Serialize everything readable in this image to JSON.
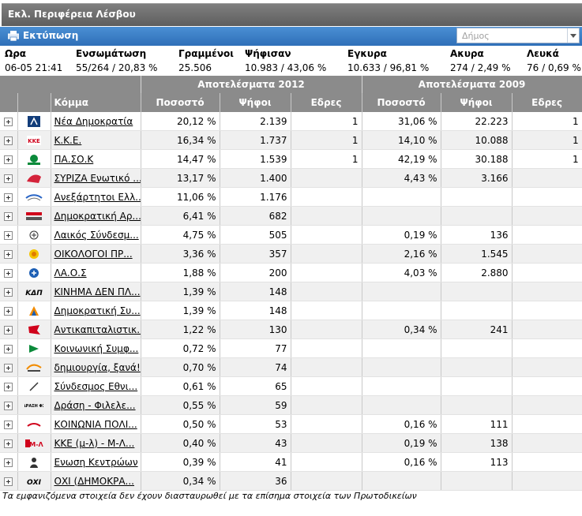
{
  "window": {
    "title": "Εκλ. Περιφέρεια Λέσβου"
  },
  "toolbar": {
    "print_label": "Εκτύπωση",
    "municipality_placeholder": "Δήμος"
  },
  "stats": {
    "headers": {
      "time": "Ωρα",
      "integration": "Ενσωμάτωση",
      "registered": "Γραμμένοι",
      "voted": "Ψήφισαν",
      "valid": "Εγκυρα",
      "invalid": "Ακυρα",
      "blank": "Λευκά"
    },
    "values": {
      "time": "06-05 21:41",
      "integration": "55/264 / 20,83 %",
      "registered": "25.506",
      "voted": "10.983 / 43,06 %",
      "valid": "10.633 / 96,81 %",
      "invalid": "274 / 2,49 %",
      "blank": "76 / 0,69 %"
    }
  },
  "table": {
    "group_2012": "Αποτελέσματα 2012",
    "group_2009": "Αποτελέσματα 2009",
    "col_party": "Κόμμα",
    "col_pct": "Ποσοστό",
    "col_votes": "Ψήφοι",
    "col_seats": "Εδρες",
    "rows": [
      {
        "party": "Νέα Δημοκρατία",
        "pct12": "20,12 %",
        "votes12": "2.139",
        "seats12": "1",
        "pct09": "31,06 %",
        "votes09": "22.223",
        "seats09": "1",
        "logo": "nd-logo-icon"
      },
      {
        "party": "Κ.Κ.Ε.",
        "pct12": "16,34 %",
        "votes12": "1.737",
        "seats12": "1",
        "pct09": "14,10 %",
        "votes09": "10.088",
        "seats09": "1",
        "logo": "kke-logo-icon"
      },
      {
        "party": "ΠΑ.ΣΟ.Κ",
        "pct12": "14,47 %",
        "votes12": "1.539",
        "seats12": "1",
        "pct09": "42,19 %",
        "votes09": "30.188",
        "seats09": "1",
        "logo": "pasok-logo-icon"
      },
      {
        "party": "ΣΥΡΙΖΑ Ενωτικό ...",
        "pct12": "13,17 %",
        "votes12": "1.400",
        "seats12": "",
        "pct09": "4,43 %",
        "votes09": "3.166",
        "seats09": "",
        "logo": "syriza-logo-icon"
      },
      {
        "party": "Ανεξάρτητοι Ελλ...",
        "pct12": "11,06 %",
        "votes12": "1.176",
        "seats12": "",
        "pct09": "",
        "votes09": "",
        "seats09": "",
        "logo": "anel-logo-icon"
      },
      {
        "party": "Δημοκρατική Αρ...",
        "pct12": "6,41 %",
        "votes12": "682",
        "seats12": "",
        "pct09": "",
        "votes09": "",
        "seats09": "",
        "logo": "dimar-logo-icon"
      },
      {
        "party": "Λαικός Σύνδεσμ...",
        "pct12": "4,75 %",
        "votes12": "505",
        "seats12": "",
        "pct09": "0,19 %",
        "votes09": "136",
        "seats09": "",
        "logo": "xa-logo-icon"
      },
      {
        "party": "ΟΙΚΟΛΟΓΟΙ ΠΡ...",
        "pct12": "3,36 %",
        "votes12": "357",
        "seats12": "",
        "pct09": "2,16 %",
        "votes09": "1.545",
        "seats09": "",
        "logo": "greens-logo-icon"
      },
      {
        "party": "ΛΑ.Ο.Σ",
        "pct12": "1,88 %",
        "votes12": "200",
        "seats12": "",
        "pct09": "4,03 %",
        "votes09": "2.880",
        "seats09": "",
        "logo": "laos-logo-icon"
      },
      {
        "party": "ΚΙΝΗΜΑ ΔΕΝ ΠΛ...",
        "pct12": "1,39 %",
        "votes12": "148",
        "seats12": "",
        "pct09": "",
        "votes09": "",
        "seats09": "",
        "logo": "kdp-logo-icon",
        "logo_text": "ΚΔΠ"
      },
      {
        "party": "Δημοκρατική Συ...",
        "pct12": "1,39 %",
        "votes12": "148",
        "seats12": "",
        "pct09": "",
        "votes09": "",
        "seats09": "",
        "logo": "dsy-logo-icon"
      },
      {
        "party": "Αντικαπιταλιστικ...",
        "pct12": "1,22 %",
        "votes12": "130",
        "seats12": "",
        "pct09": "0,34 %",
        "votes09": "241",
        "seats09": "",
        "logo": "antarsya-logo-icon"
      },
      {
        "party": "Κοινωνική Συμφ...",
        "pct12": "0,72 %",
        "votes12": "77",
        "seats12": "",
        "pct09": "",
        "votes09": "",
        "seats09": "",
        "logo": "ks-logo-icon"
      },
      {
        "party": "δημιουργία, ξανά!",
        "pct12": "0,70 %",
        "votes12": "74",
        "seats12": "",
        "pct09": "",
        "votes09": "",
        "seats09": "",
        "logo": "dx-logo-icon"
      },
      {
        "party": "Σύνδεσμος Εθνι...",
        "pct12": "0,61 %",
        "votes12": "65",
        "seats12": "",
        "pct09": "",
        "votes09": "",
        "seats09": "",
        "logo": "se-logo-icon"
      },
      {
        "party": "Δράση - Φιλελε...",
        "pct12": "0,55 %",
        "votes12": "59",
        "seats12": "",
        "pct09": "",
        "votes09": "",
        "seats09": "",
        "logo": "drasi-logo-icon",
        "logo_text": "ΔΡΑΣΗ ΦΣ"
      },
      {
        "party": "ΚΟΙΝΩΝΙΑ ΠΟΛΙ...",
        "pct12": "0,50 %",
        "votes12": "53",
        "seats12": "",
        "pct09": "0,16 %",
        "votes09": "111",
        "seats09": "",
        "logo": "koinonia-logo-icon"
      },
      {
        "party": "ΚΚΕ (μ-λ) - Μ-Λ...",
        "pct12": "0,40 %",
        "votes12": "43",
        "seats12": "",
        "pct09": "0,19 %",
        "votes09": "138",
        "seats09": "",
        "logo": "kkeml-logo-icon",
        "logo_text": "Μ-Λ"
      },
      {
        "party": "Ενωση Κεντρώων",
        "pct12": "0,39 %",
        "votes12": "41",
        "seats12": "",
        "pct09": "0,16 %",
        "votes09": "113",
        "seats09": "",
        "logo": "ek-logo-icon"
      },
      {
        "party": "ΟΧΙ (ΔΗΜΟΚΡΑ...",
        "pct12": "0,34 %",
        "votes12": "36",
        "seats12": "",
        "pct09": "",
        "votes09": "",
        "seats09": "",
        "logo": "oxi-logo-icon",
        "logo_text": "ΟΧΙ"
      }
    ]
  },
  "footnote": "Τα εμφανιζόμενα στοιχεία δεν έχουν διασταυρωθεί με τα επίσημα στοιχεία των Πρωτοδικείων",
  "colors": {
    "header_gray": "#8b8b8b",
    "toolbar_blue": "#3a7cc4",
    "title_gray": "#6e6e6e"
  }
}
